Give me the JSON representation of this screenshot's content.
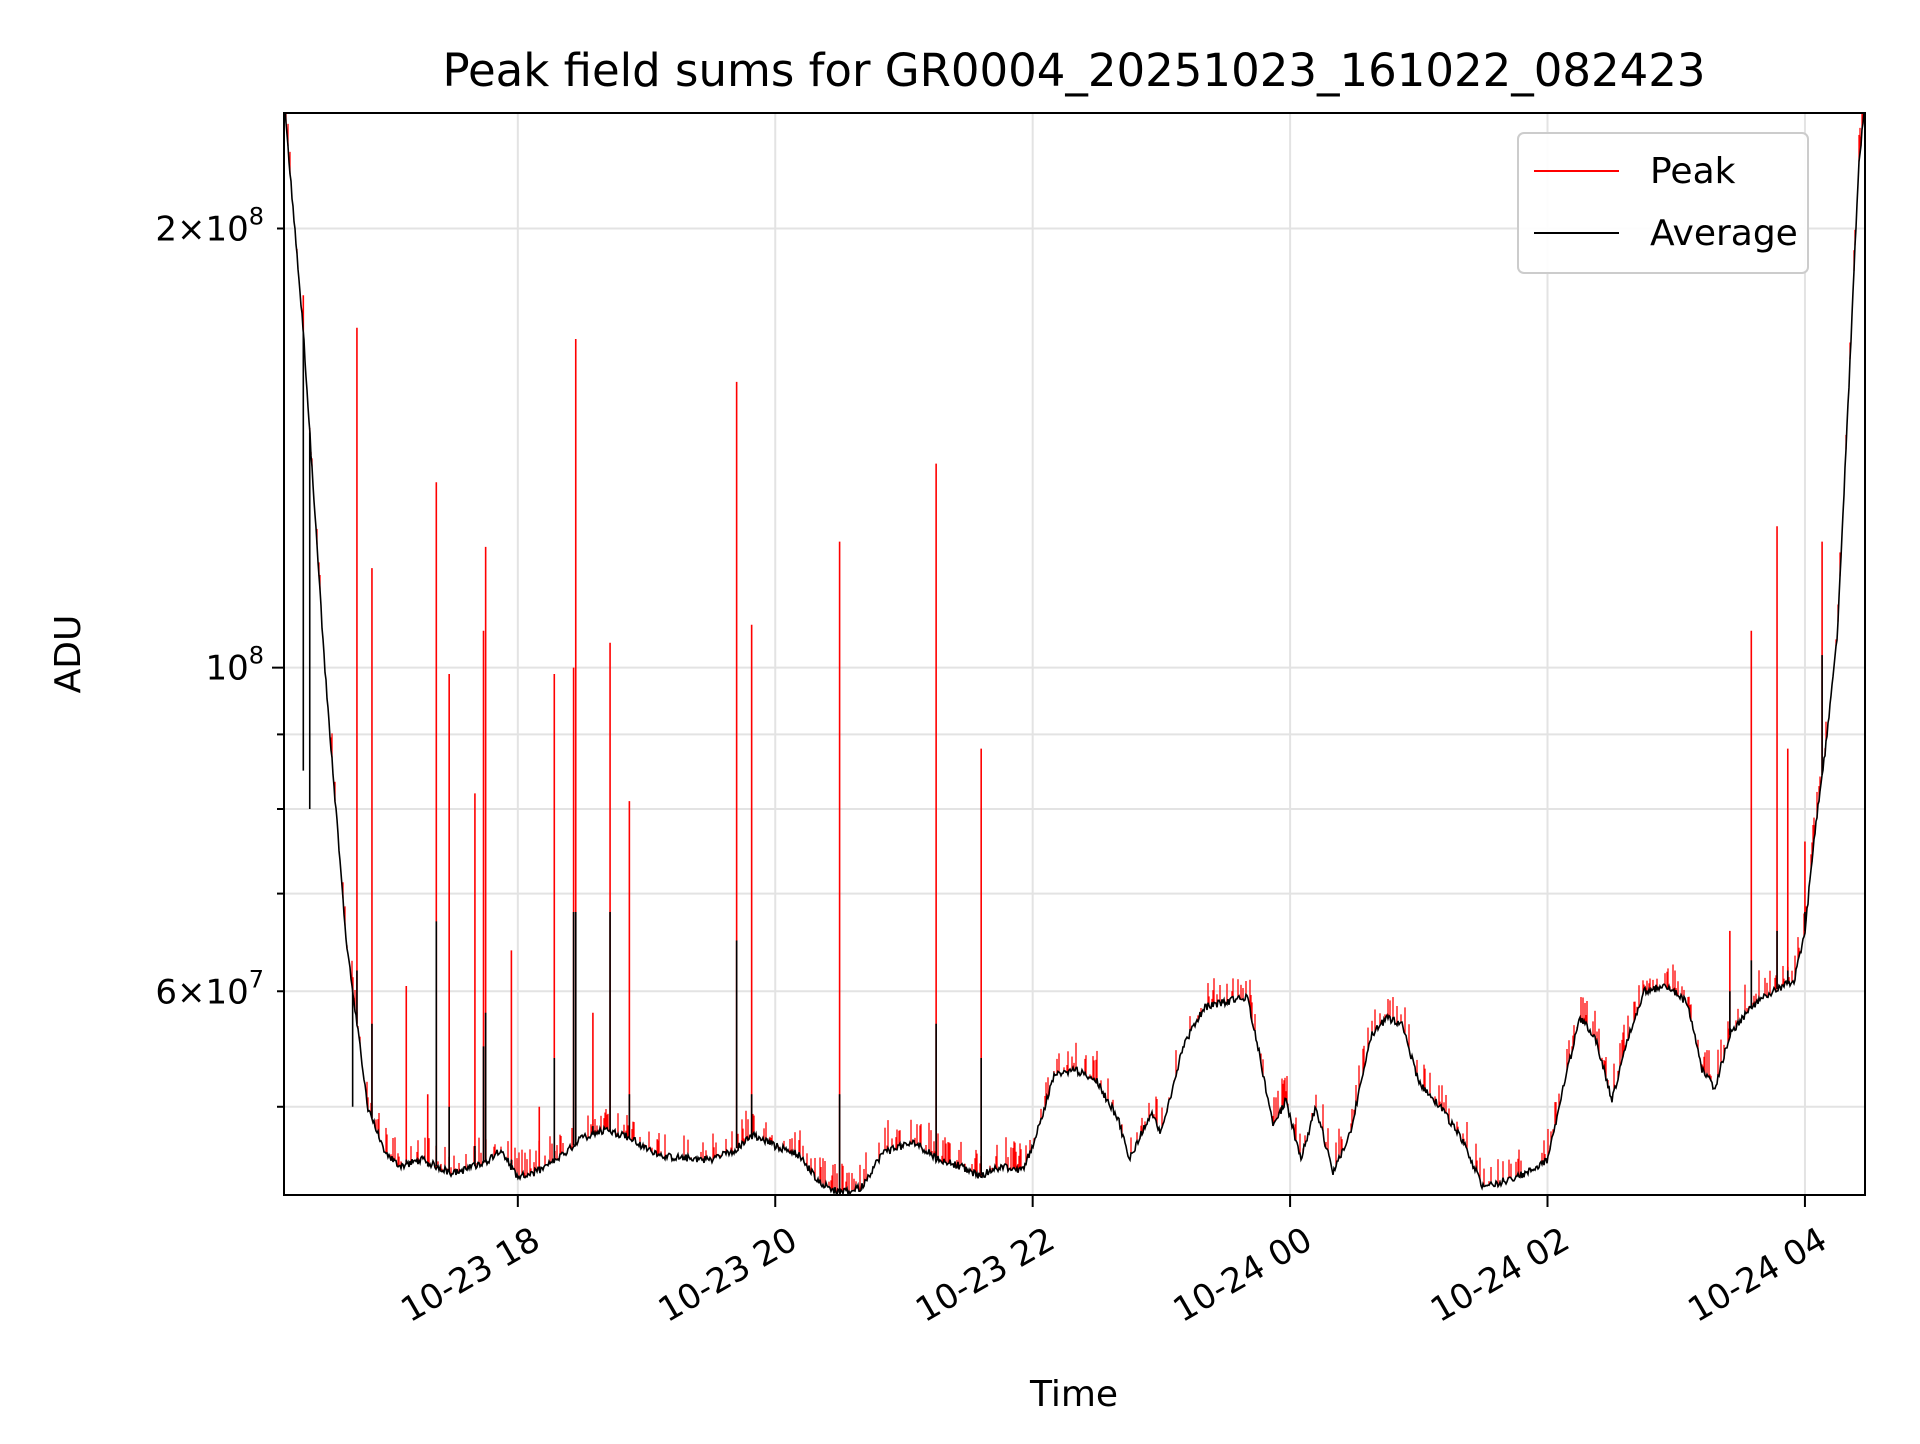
{
  "chart_data": {
    "type": "line",
    "title": "Peak field sums for GR0004_20251023_161022_082423",
    "xlabel": "Time",
    "ylabel": "ADU",
    "x_axis": {
      "kind": "datetime",
      "range": [
        "2025-10-23 16:11",
        "2025-10-24 04:28"
      ],
      "ticks": [
        {
          "value": "2025-10-23 18:00",
          "label": "10-23 18"
        },
        {
          "value": "2025-10-23 20:00",
          "label": "10-23 20"
        },
        {
          "value": "2025-10-23 22:00",
          "label": "10-23 22"
        },
        {
          "value": "2025-10-24 00:00",
          "label": "10-24 00"
        },
        {
          "value": "2025-10-24 02:00",
          "label": "10-24 02"
        },
        {
          "value": "2025-10-24 04:00",
          "label": "10-24 04"
        }
      ]
    },
    "y_axis": {
      "scale": "log",
      "range": [
        43500000,
        240000000
      ],
      "major_ticks": [
        {
          "value": 100000000,
          "base": "10",
          "exp": "8",
          "mant": ""
        }
      ],
      "minor_ticks": [
        {
          "value": 50000000,
          "label": "",
          "mant": "",
          "exp": ""
        },
        {
          "value": 60000000,
          "label": "",
          "mant": "6",
          "exp": "7"
        },
        {
          "value": 70000000,
          "label": "",
          "mant": "",
          "exp": ""
        },
        {
          "value": 80000000,
          "label": "",
          "mant": "",
          "exp": ""
        },
        {
          "value": 90000000,
          "label": "",
          "mant": "",
          "exp": ""
        },
        {
          "value": 200000000,
          "label": "",
          "mant": "2",
          "exp": "8"
        }
      ]
    },
    "grid": true,
    "legend": {
      "position": "top-right"
    },
    "series": [
      {
        "name": "Peak",
        "color": "#ff0000"
      },
      {
        "name": "Average",
        "color": "#000000"
      }
    ],
    "average_profile": [
      [
        "2025-10-23 16:11",
        245000000
      ],
      [
        "2025-10-23 16:20",
        170000000
      ],
      [
        "2025-10-23 16:30",
        100000000
      ],
      [
        "2025-10-23 16:40",
        65000000
      ],
      [
        "2025-10-23 16:50",
        50000000
      ],
      [
        "2025-10-23 16:58",
        46500000
      ],
      [
        "2025-10-23 17:05",
        45500000
      ],
      [
        "2025-10-23 17:15",
        46000000
      ],
      [
        "2025-10-23 17:30",
        45000000
      ],
      [
        "2025-10-23 17:45",
        45800000
      ],
      [
        "2025-10-23 17:52",
        46800000
      ],
      [
        "2025-10-23 18:00",
        44700000
      ],
      [
        "2025-10-23 18:10",
        45200000
      ],
      [
        "2025-10-23 18:20",
        46200000
      ],
      [
        "2025-10-23 18:30",
        47600000
      ],
      [
        "2025-10-23 18:40",
        48200000
      ],
      [
        "2025-10-23 18:50",
        47800000
      ],
      [
        "2025-10-23 19:00",
        46800000
      ],
      [
        "2025-10-23 19:10",
        46200000
      ],
      [
        "2025-10-23 19:30",
        46000000
      ],
      [
        "2025-10-23 19:40",
        46600000
      ],
      [
        "2025-10-23 19:50",
        47800000
      ],
      [
        "2025-10-23 20:00",
        47000000
      ],
      [
        "2025-10-23 20:10",
        46500000
      ],
      [
        "2025-10-23 20:20",
        44500000
      ],
      [
        "2025-10-23 20:30",
        43600000
      ],
      [
        "2025-10-23 20:40",
        44000000
      ],
      [
        "2025-10-23 20:50",
        46500000
      ],
      [
        "2025-10-23 21:05",
        47300000
      ],
      [
        "2025-10-23 21:15",
        46100000
      ],
      [
        "2025-10-23 21:25",
        45600000
      ],
      [
        "2025-10-23 21:35",
        44800000
      ],
      [
        "2025-10-23 21:45",
        45500000
      ],
      [
        "2025-10-23 21:55",
        45200000
      ],
      [
        "2025-10-23 22:00",
        47000000
      ],
      [
        "2025-10-23 22:10",
        52500000
      ],
      [
        "2025-10-23 22:20",
        53000000
      ],
      [
        "2025-10-23 22:30",
        52000000
      ],
      [
        "2025-10-23 22:40",
        49000000
      ],
      [
        "2025-10-23 22:45",
        46000000
      ],
      [
        "2025-10-23 22:55",
        49500000
      ],
      [
        "2025-10-23 23:00",
        48000000
      ],
      [
        "2025-10-23 23:10",
        55000000
      ],
      [
        "2025-10-23 23:20",
        58500000
      ],
      [
        "2025-10-23 23:30",
        59000000
      ],
      [
        "2025-10-23 23:40",
        59500000
      ],
      [
        "2025-10-23 23:45",
        55000000
      ],
      [
        "2025-10-23 23:52",
        48500000
      ],
      [
        "2025-10-23 23:58",
        50500000
      ],
      [
        "2025-10-24 00:05",
        46000000
      ],
      [
        "2025-10-24 00:12",
        50000000
      ],
      [
        "2025-10-24 00:20",
        45000000
      ],
      [
        "2025-10-24 00:28",
        48000000
      ],
      [
        "2025-10-24 00:38",
        56000000
      ],
      [
        "2025-10-24 00:45",
        57500000
      ],
      [
        "2025-10-24 00:52",
        57000000
      ],
      [
        "2025-10-24 01:00",
        52000000
      ],
      [
        "2025-10-24 01:10",
        50000000
      ],
      [
        "2025-10-24 01:20",
        47500000
      ],
      [
        "2025-10-24 01:30",
        44000000
      ],
      [
        "2025-10-24 01:40",
        44500000
      ],
      [
        "2025-10-24 01:50",
        45000000
      ],
      [
        "2025-10-24 02:00",
        46000000
      ],
      [
        "2025-10-24 02:08",
        52000000
      ],
      [
        "2025-10-24 02:15",
        57500000
      ],
      [
        "2025-10-24 02:22",
        56000000
      ],
      [
        "2025-10-24 02:30",
        50500000
      ],
      [
        "2025-10-24 02:38",
        56000000
      ],
      [
        "2025-10-24 02:45",
        60000000
      ],
      [
        "2025-10-24 02:55",
        60500000
      ],
      [
        "2025-10-24 03:05",
        59000000
      ],
      [
        "2025-10-24 03:12",
        53000000
      ],
      [
        "2025-10-24 03:18",
        51500000
      ],
      [
        "2025-10-24 03:25",
        56000000
      ],
      [
        "2025-10-24 03:35",
        58500000
      ],
      [
        "2025-10-24 03:45",
        60000000
      ],
      [
        "2025-10-24 03:55",
        61000000
      ],
      [
        "2025-10-24 04:00",
        66000000
      ],
      [
        "2025-10-24 04:05",
        78000000
      ],
      [
        "2025-10-24 04:10",
        89000000
      ],
      [
        "2025-10-24 04:15",
        105000000
      ],
      [
        "2025-10-24 04:20",
        150000000
      ],
      [
        "2025-10-24 04:25",
        220000000
      ],
      [
        "2025-10-24 04:28",
        245000000
      ]
    ],
    "peak_spikes": [
      [
        "2025-10-23 16:20",
        180000000,
        85000000
      ],
      [
        "2025-10-23 16:23",
        146000000,
        80000000
      ],
      [
        "2025-10-23 16:43",
        60000000,
        50000000
      ],
      [
        "2025-10-23 16:45",
        171000000,
        62000000
      ],
      [
        "2025-10-23 16:52",
        117000000,
        57000000
      ],
      [
        "2025-10-23 17:08",
        60500000,
        46000000
      ],
      [
        "2025-10-23 17:18",
        51000000,
        45500000
      ],
      [
        "2025-10-23 17:22",
        134000000,
        67000000
      ],
      [
        "2025-10-23 17:28",
        99000000,
        50000000
      ],
      [
        "2025-10-23 17:40",
        82000000,
        47000000
      ],
      [
        "2025-10-23 17:44",
        106000000,
        55000000
      ],
      [
        "2025-10-23 17:45",
        121000000,
        58000000
      ],
      [
        "2025-10-23 17:57",
        64000000,
        46000000
      ],
      [
        "2025-10-23 18:10",
        50000000,
        45500000
      ],
      [
        "2025-10-23 18:17",
        99000000,
        54000000
      ],
      [
        "2025-10-23 18:26",
        100000000,
        68000000
      ],
      [
        "2025-10-23 18:27",
        168000000,
        68000000
      ],
      [
        "2025-10-23 18:35",
        58000000,
        48500000
      ],
      [
        "2025-10-23 18:43",
        104000000,
        68000000
      ],
      [
        "2025-10-23 18:52",
        81000000,
        51000000
      ],
      [
        "2025-10-23 19:05",
        47500000,
        46500000
      ],
      [
        "2025-10-23 19:42",
        157000000,
        65000000
      ],
      [
        "2025-10-23 19:49",
        107000000,
        51000000
      ],
      [
        "2025-10-23 20:30",
        122000000,
        51000000
      ],
      [
        "2025-10-23 21:15",
        138000000,
        57000000
      ],
      [
        "2025-10-23 21:36",
        88000000,
        54000000
      ],
      [
        "2025-10-24 03:25",
        66000000,
        60000000
      ],
      [
        "2025-10-24 03:35",
        106000000,
        63000000
      ],
      [
        "2025-10-24 03:47",
        125000000,
        66000000
      ],
      [
        "2025-10-24 03:52",
        88000000,
        62000000
      ],
      [
        "2025-10-24 04:00",
        76000000,
        68000000
      ],
      [
        "2025-10-24 04:08",
        122000000,
        102000000
      ]
    ]
  }
}
